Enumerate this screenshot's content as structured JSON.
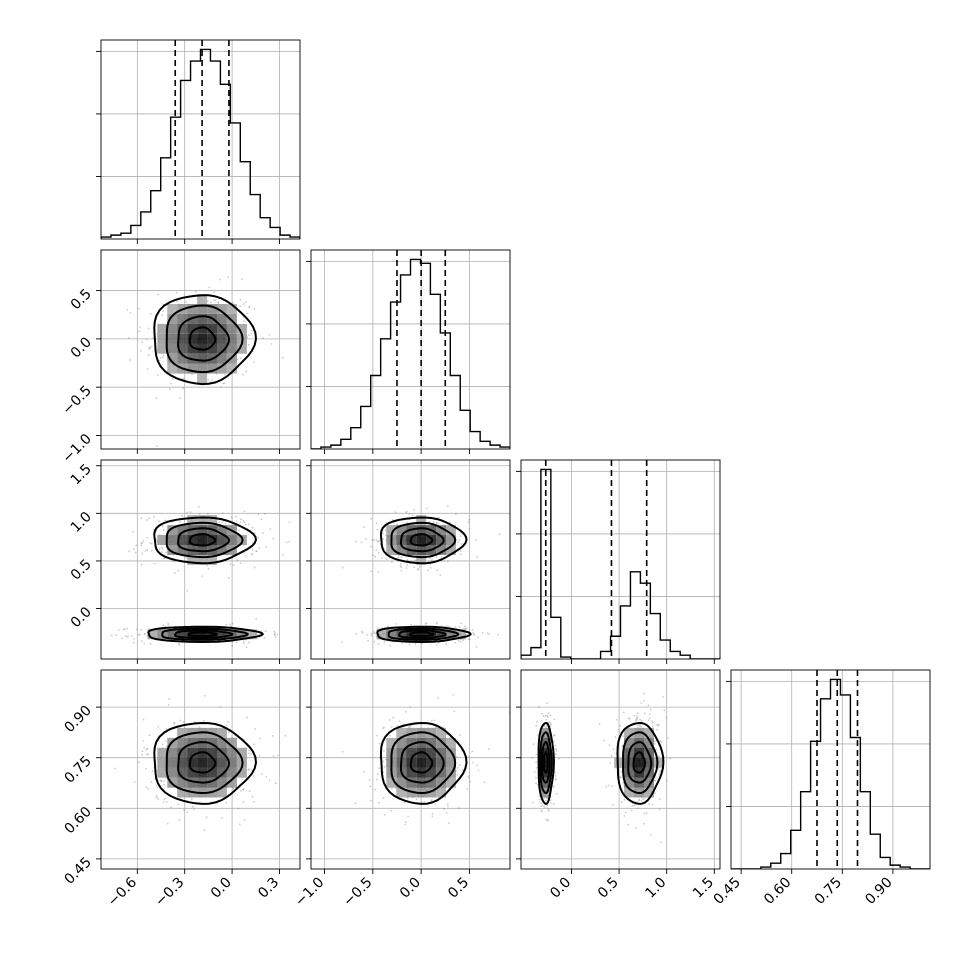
{
  "chart_data": {
    "type": "corner",
    "title": "",
    "grid": true,
    "quantiles": [
      0.16,
      0.5,
      0.84
    ],
    "parameters": [
      {
        "xlim": [
          -0.83,
          0.43
        ],
        "ticks": [
          -0.6,
          -0.3,
          0.0,
          0.3
        ],
        "tick_labels": [
          "−0.6",
          "−0.3",
          "0.0",
          "0.3"
        ],
        "quantile_values": [
          -0.36,
          -0.19,
          -0.02
        ],
        "hist": {
          "bin_edges": [
            -0.83,
            -0.767,
            -0.704,
            -0.641,
            -0.578,
            -0.515,
            -0.452,
            -0.389,
            -0.326,
            -0.263,
            -0.2,
            -0.137,
            -0.074,
            -0.011,
            0.052,
            0.115,
            0.178,
            0.241,
            0.304,
            0.367,
            0.43
          ],
          "counts": [
            1,
            2,
            3,
            7,
            14,
            25,
            42,
            63,
            82,
            92,
            98,
            92,
            80,
            60,
            40,
            23,
            11,
            6,
            2,
            1
          ]
        }
      },
      {
        "xlim": [
          -1.14,
          0.92
        ],
        "ticks": [
          -1.0,
          -0.5,
          0.0,
          0.5
        ],
        "tick_labels": [
          "−1.0",
          "−0.5",
          "0.0",
          "0.5"
        ],
        "quantile_values": [
          -0.25,
          0.0,
          0.25
        ],
        "hist": {
          "bin_edges": [
            -1.14,
            -1.037,
            -0.934,
            -0.831,
            -0.728,
            -0.625,
            -0.522,
            -0.419,
            -0.316,
            -0.213,
            -0.11,
            -0.007,
            0.096,
            0.199,
            0.302,
            0.405,
            0.508,
            0.611,
            0.714,
            0.817,
            0.92
          ],
          "counts": [
            0,
            1,
            2,
            5,
            11,
            22,
            38,
            57,
            76,
            90,
            98,
            96,
            80,
            60,
            38,
            20,
            9,
            4,
            2,
            1
          ]
        }
      },
      {
        "xlim": [
          -0.53,
          1.56
        ],
        "ticks": [
          0.0,
          0.5,
          1.0,
          1.5
        ],
        "tick_labels": [
          "0.0",
          "0.5",
          "1.0",
          "1.5"
        ],
        "quantile_values": [
          -0.27,
          0.42,
          0.79
        ],
        "hist": {
          "bin_edges": [
            -0.53,
            -0.4255,
            -0.321,
            -0.2165,
            -0.112,
            -0.0075,
            0.097,
            0.2015,
            0.306,
            0.4105,
            0.515,
            0.6195,
            0.724,
            0.8285,
            0.933,
            1.0375,
            1.142,
            1.2465,
            1.351,
            1.4555,
            1.56
          ],
          "counts": [
            2,
            6,
            100,
            22,
            1,
            0,
            0,
            0,
            4,
            12,
            28,
            46,
            40,
            24,
            10,
            4,
            2,
            0,
            0,
            0
          ]
        }
      },
      {
        "xlim": [
          0.42,
          1.01
        ],
        "ticks": [
          0.45,
          0.6,
          0.75,
          0.9
        ],
        "tick_labels": [
          "0.45",
          "0.60",
          "0.75",
          "0.90"
        ],
        "quantile_values": [
          0.675,
          0.735,
          0.795
        ],
        "hist": {
          "bin_edges": [
            0.42,
            0.4495,
            0.479,
            0.5085,
            0.538,
            0.5675,
            0.597,
            0.6265,
            0.656,
            0.6855,
            0.715,
            0.7445,
            0.774,
            0.8035,
            0.833,
            0.8625,
            0.892,
            0.9215,
            0.951,
            0.9805,
            1.01
          ],
          "counts": [
            0,
            0,
            0,
            1,
            3,
            8,
            20,
            40,
            66,
            88,
            98,
            90,
            68,
            40,
            18,
            6,
            2,
            1,
            0,
            0
          ]
        }
      }
    ],
    "pairs": [
      {
        "row": 1,
        "col": 0,
        "modes": [
          {
            "cx": -0.19,
            "cy": 0.0,
            "sx": 0.16,
            "sy": 0.23,
            "rho": 0.0
          }
        ]
      },
      {
        "row": 2,
        "col": 0,
        "modes": [
          {
            "cx": -0.19,
            "cy": 0.72,
            "sx": 0.16,
            "sy": 0.12,
            "rho": 0.0
          },
          {
            "cx": -0.19,
            "cy": -0.27,
            "sx": 0.18,
            "sy": 0.04,
            "rho": 0.0
          }
        ]
      },
      {
        "row": 2,
        "col": 1,
        "modes": [
          {
            "cx": 0.0,
            "cy": 0.72,
            "sx": 0.22,
            "sy": 0.12,
            "rho": 0.0
          },
          {
            "cx": 0.0,
            "cy": -0.27,
            "sx": 0.24,
            "sy": 0.04,
            "rho": 0.0
          }
        ]
      },
      {
        "row": 3,
        "col": 0,
        "modes": [
          {
            "cx": -0.19,
            "cy": 0.735,
            "sx": 0.16,
            "sy": 0.06,
            "rho": 0.0
          }
        ]
      },
      {
        "row": 3,
        "col": 1,
        "modes": [
          {
            "cx": 0.0,
            "cy": 0.735,
            "sx": 0.22,
            "sy": 0.06,
            "rho": 0.0
          }
        ]
      },
      {
        "row": 3,
        "col": 2,
        "modes": [
          {
            "cx": -0.27,
            "cy": 0.735,
            "sx": 0.04,
            "sy": 0.06,
            "rho": 0.0
          },
          {
            "cx": 0.71,
            "cy": 0.735,
            "sx": 0.12,
            "sy": 0.06,
            "rho": 0.0
          }
        ]
      }
    ],
    "contour_levels_sigma": [
      0.5,
      1.0,
      1.5,
      2.0
    ]
  }
}
